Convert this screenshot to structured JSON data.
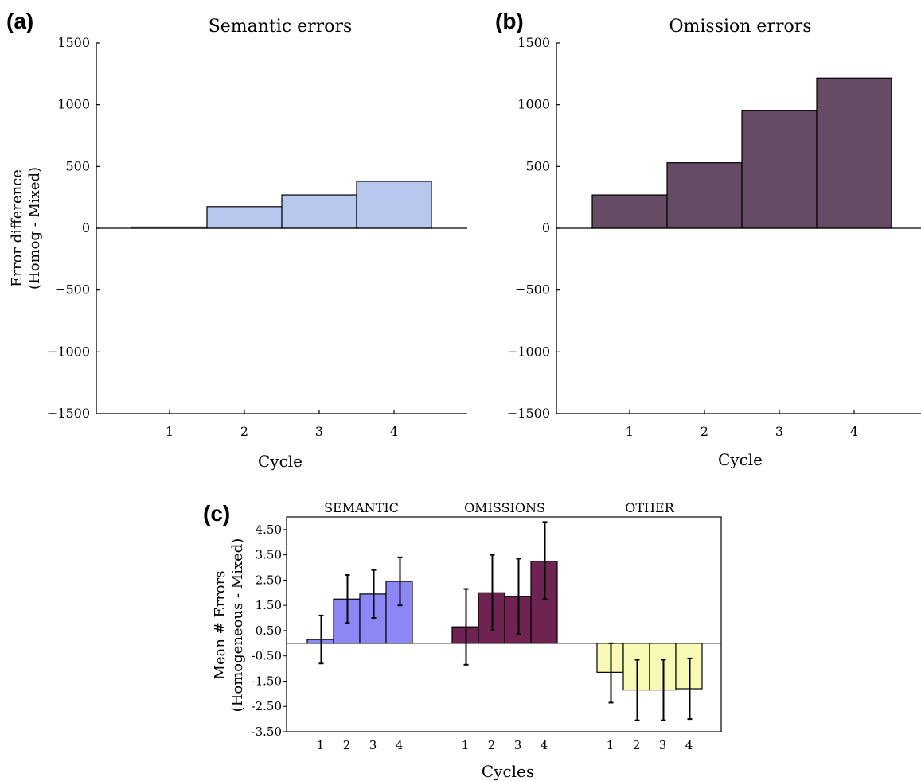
{
  "panels": {
    "a": {
      "letter": "(a)",
      "title": "Semantic errors",
      "ylabel_line1": "Error difference",
      "ylabel_line2": "(Homog - Mixed)",
      "xlabel": "Cycle"
    },
    "b": {
      "letter": "(b)",
      "title": "Omission errors",
      "xlabel": "Cycle"
    },
    "c": {
      "letter": "(c)",
      "ylabel_line1": "Mean # Errors",
      "ylabel_line2": "(Homogeneous - Mixed)",
      "xlabel": "Cycles"
    }
  },
  "chart_data": [
    {
      "id": "a",
      "type": "bar",
      "title": "Semantic errors",
      "xlabel": "Cycle",
      "ylabel": "Error difference (Homog - Mixed)",
      "categories": [
        "1",
        "2",
        "3",
        "4"
      ],
      "values": [
        10,
        175,
        270,
        380
      ],
      "ylim": [
        -1500,
        1500
      ],
      "yticks": [
        "1500",
        "1000",
        "500",
        "0",
        "−500",
        "−1000",
        "−1500"
      ],
      "ytick_values": [
        1500,
        1000,
        500,
        0,
        -500,
        -1000,
        -1500
      ],
      "color": "#b8c7ee",
      "grid": false
    },
    {
      "id": "b",
      "type": "bar",
      "title": "Omission errors",
      "xlabel": "Cycle",
      "ylabel": "",
      "categories": [
        "1",
        "2",
        "3",
        "4"
      ],
      "values": [
        270,
        530,
        955,
        1215
      ],
      "ylim": [
        -1500,
        1500
      ],
      "yticks": [
        "1500",
        "1000",
        "500",
        "0",
        "−500",
        "−1000",
        "−1500"
      ],
      "ytick_values": [
        1500,
        1000,
        500,
        0,
        -500,
        -1000,
        -1500
      ],
      "color": "#654c64",
      "grid": false
    },
    {
      "id": "c",
      "type": "bar",
      "xlabel": "Cycles",
      "ylabel": "Mean # Errors (Homogeneous - Mixed)",
      "ylim": [
        -3.5,
        5.0
      ],
      "yticks": [
        "4.50",
        "3.50",
        "2.50",
        "1.50",
        "0.50",
        "-0.50",
        "-1.50",
        "-2.50",
        "-3.50"
      ],
      "ytick_values": [
        4.5,
        3.5,
        2.5,
        1.5,
        0.5,
        -0.5,
        -1.5,
        -2.5,
        -3.5
      ],
      "groups": [
        {
          "name": "SEMANTIC",
          "color": "#8d87f5",
          "categories": [
            "1",
            "2",
            "3",
            "4"
          ],
          "values": [
            0.15,
            1.75,
            1.95,
            2.45
          ],
          "err_low": [
            -0.8,
            0.8,
            1.0,
            1.5
          ],
          "err_high": [
            1.1,
            2.7,
            2.9,
            3.4
          ]
        },
        {
          "name": "OMISSIONS",
          "color": "#6e2350",
          "categories": [
            "1",
            "2",
            "3",
            "4"
          ],
          "values": [
            0.65,
            2.0,
            1.85,
            3.25
          ],
          "err_low": [
            -0.85,
            0.5,
            0.35,
            1.75
          ],
          "err_high": [
            2.15,
            3.5,
            3.35,
            4.8
          ]
        },
        {
          "name": "OTHER",
          "color": "#f8f9b5",
          "categories": [
            "1",
            "2",
            "3",
            "4"
          ],
          "values": [
            -1.15,
            -1.85,
            -1.85,
            -1.8
          ],
          "err_low": [
            -2.35,
            -3.05,
            -3.05,
            -3.0
          ],
          "err_high": [
            0.0,
            -0.65,
            -0.65,
            -0.6
          ]
        }
      ],
      "grid": false
    }
  ]
}
